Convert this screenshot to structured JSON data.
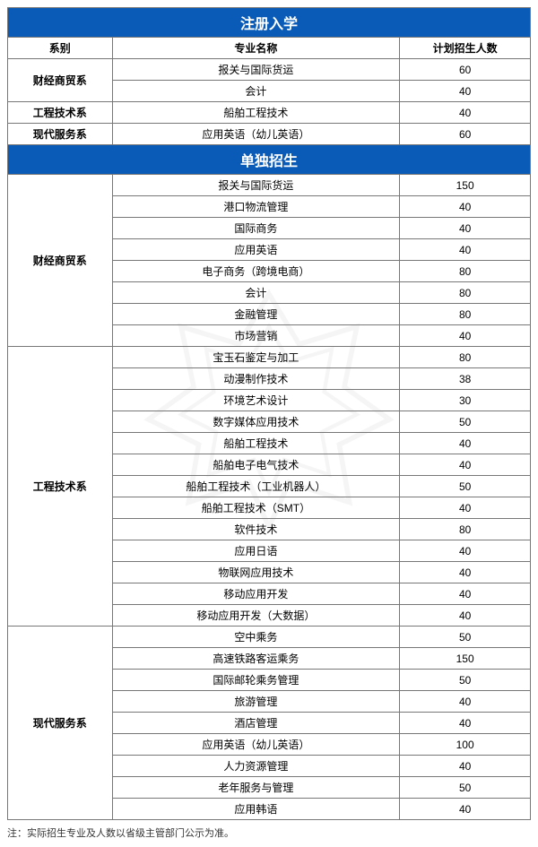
{
  "colors": {
    "header_bg": "#0a5bb8",
    "header_text": "#ffffff",
    "border": "#777777",
    "body_text": "#333333"
  },
  "columns": {
    "dept": "系别",
    "major": "专业名称",
    "count": "计划招生人数"
  },
  "sections": [
    {
      "title": "注册入学",
      "groups": [
        {
          "dept": "财经商贸系",
          "rows": [
            {
              "major": "报关与国际货运",
              "count": "60"
            },
            {
              "major": "会计",
              "count": "40"
            }
          ]
        },
        {
          "dept": "工程技术系",
          "rows": [
            {
              "major": "船舶工程技术",
              "count": "40"
            }
          ]
        },
        {
          "dept": "现代服务系",
          "rows": [
            {
              "major": "应用英语（幼儿英语）",
              "count": "60"
            }
          ]
        }
      ]
    },
    {
      "title": "单独招生",
      "groups": [
        {
          "dept": "财经商贸系",
          "rows": [
            {
              "major": "报关与国际货运",
              "count": "150"
            },
            {
              "major": "港口物流管理",
              "count": "40"
            },
            {
              "major": "国际商务",
              "count": "40"
            },
            {
              "major": "应用英语",
              "count": "40"
            },
            {
              "major": "电子商务（跨境电商）",
              "count": "80"
            },
            {
              "major": "会计",
              "count": "80"
            },
            {
              "major": "金融管理",
              "count": "80"
            },
            {
              "major": "市场营销",
              "count": "40"
            }
          ]
        },
        {
          "dept": "工程技术系",
          "rows": [
            {
              "major": "宝玉石鉴定与加工",
              "count": "80"
            },
            {
              "major": "动漫制作技术",
              "count": "38"
            },
            {
              "major": "环境艺术设计",
              "count": "30"
            },
            {
              "major": "数字媒体应用技术",
              "count": "50"
            },
            {
              "major": "船舶工程技术",
              "count": "40"
            },
            {
              "major": "船舶电子电气技术",
              "count": "40"
            },
            {
              "major": "船舶工程技术（工业机器人）",
              "count": "50"
            },
            {
              "major": "船舶工程技术（SMT）",
              "count": "40"
            },
            {
              "major": "软件技术",
              "count": "80"
            },
            {
              "major": "应用日语",
              "count": "40"
            },
            {
              "major": "物联网应用技术",
              "count": "40"
            },
            {
              "major": "移动应用开发",
              "count": "40"
            },
            {
              "major": "移动应用开发（大数据）",
              "count": "40"
            }
          ]
        },
        {
          "dept": "现代服务系",
          "rows": [
            {
              "major": "空中乘务",
              "count": "50"
            },
            {
              "major": "高速铁路客运乘务",
              "count": "150"
            },
            {
              "major": "国际邮轮乘务管理",
              "count": "50"
            },
            {
              "major": "旅游管理",
              "count": "40"
            },
            {
              "major": "酒店管理",
              "count": "40"
            },
            {
              "major": "应用英语（幼儿英语）",
              "count": "100"
            },
            {
              "major": "人力资源管理",
              "count": "40"
            },
            {
              "major": "老年服务与管理",
              "count": "50"
            },
            {
              "major": "应用韩语",
              "count": "40"
            }
          ]
        }
      ]
    }
  ],
  "footnote": "注：实际招生专业及人数以省级主管部门公示为准。"
}
